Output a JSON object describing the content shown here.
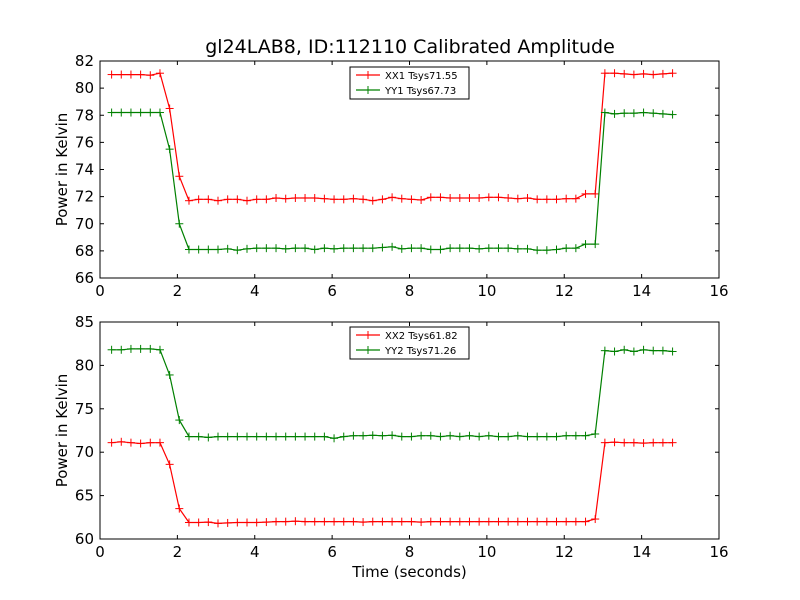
{
  "figure": {
    "title": "gl24LAB8, ID:112110 Calibrated Amplitude"
  },
  "chart_data": [
    {
      "type": "line",
      "title": "gl24LAB8, ID:112110 Calibrated Amplitude",
      "xlabel": "",
      "ylabel": "Power in Kelvin",
      "xlim": [
        0,
        16
      ],
      "ylim": [
        66,
        82
      ],
      "xticks": [
        "0",
        "2",
        "4",
        "6",
        "8",
        "10",
        "12",
        "14",
        "16"
      ],
      "yticks": [
        "66",
        "68",
        "70",
        "72",
        "74",
        "76",
        "78",
        "80",
        "82"
      ],
      "legend_position": "top-center",
      "grid": false,
      "marker": "+",
      "x": [
        0.3,
        0.55,
        0.8,
        1.05,
        1.3,
        1.55,
        1.8,
        2.05,
        2.3,
        2.55,
        2.8,
        3.05,
        3.3,
        3.55,
        3.8,
        4.05,
        4.3,
        4.55,
        4.8,
        5.05,
        5.3,
        5.55,
        5.8,
        6.05,
        6.3,
        6.55,
        6.8,
        7.05,
        7.3,
        7.55,
        7.8,
        8.05,
        8.3,
        8.55,
        8.8,
        9.05,
        9.3,
        9.55,
        9.8,
        10.05,
        10.3,
        10.55,
        10.8,
        11.05,
        11.3,
        11.55,
        11.8,
        12.05,
        12.3,
        12.55,
        12.8,
        13.05,
        13.3,
        13.55,
        13.8,
        14.05,
        14.3,
        14.55,
        14.8
      ],
      "series": [
        {
          "name": "XX1 Tsys71.55",
          "color": "#ff0000",
          "values": [
            81.0,
            81.0,
            81.0,
            81.0,
            80.95,
            81.1,
            78.5,
            73.5,
            71.7,
            71.8,
            71.8,
            71.7,
            71.8,
            71.8,
            71.7,
            71.8,
            71.8,
            71.9,
            71.85,
            71.9,
            71.9,
            71.9,
            71.85,
            71.8,
            71.8,
            71.85,
            71.8,
            71.7,
            71.8,
            71.95,
            71.85,
            71.8,
            71.75,
            71.95,
            71.95,
            71.9,
            71.9,
            71.9,
            71.9,
            71.95,
            71.95,
            71.9,
            71.85,
            71.9,
            71.8,
            71.8,
            71.8,
            71.85,
            71.85,
            72.2,
            72.2,
            81.1,
            81.1,
            81.05,
            81.0,
            81.05,
            81.0,
            81.05,
            81.1
          ]
        },
        {
          "name": "YY1 Tsys67.73",
          "color": "#008000",
          "values": [
            78.2,
            78.2,
            78.2,
            78.2,
            78.2,
            78.2,
            75.5,
            70.0,
            68.1,
            68.1,
            68.1,
            68.1,
            68.15,
            68.05,
            68.15,
            68.2,
            68.2,
            68.2,
            68.15,
            68.2,
            68.2,
            68.1,
            68.2,
            68.15,
            68.2,
            68.2,
            68.2,
            68.2,
            68.25,
            68.3,
            68.15,
            68.2,
            68.2,
            68.1,
            68.1,
            68.2,
            68.2,
            68.2,
            68.15,
            68.2,
            68.2,
            68.2,
            68.15,
            68.15,
            68.05,
            68.05,
            68.1,
            68.2,
            68.2,
            68.5,
            68.5,
            78.2,
            78.1,
            78.15,
            78.15,
            78.2,
            78.15,
            78.1,
            78.05
          ]
        }
      ]
    },
    {
      "type": "line",
      "title": "",
      "xlabel": "Time (seconds)",
      "ylabel": "Power in Kelvin",
      "xlim": [
        0,
        16
      ],
      "ylim": [
        60,
        85
      ],
      "xticks": [
        "0",
        "2",
        "4",
        "6",
        "8",
        "10",
        "12",
        "14",
        "16"
      ],
      "yticks": [
        "60",
        "65",
        "70",
        "75",
        "80",
        "85"
      ],
      "legend_position": "top-center",
      "grid": false,
      "marker": "+",
      "x": [
        0.3,
        0.55,
        0.8,
        1.05,
        1.3,
        1.55,
        1.8,
        2.05,
        2.3,
        2.55,
        2.8,
        3.05,
        3.3,
        3.55,
        3.8,
        4.05,
        4.3,
        4.55,
        4.8,
        5.05,
        5.3,
        5.55,
        5.8,
        6.05,
        6.3,
        6.55,
        6.8,
        7.05,
        7.3,
        7.55,
        7.8,
        8.05,
        8.3,
        8.55,
        8.8,
        9.05,
        9.3,
        9.55,
        9.8,
        10.05,
        10.3,
        10.55,
        10.8,
        11.05,
        11.3,
        11.55,
        11.8,
        12.05,
        12.3,
        12.55,
        12.8,
        13.05,
        13.3,
        13.55,
        13.8,
        14.05,
        14.3,
        14.55,
        14.8
      ],
      "series": [
        {
          "name": "XX2 Tsys61.82",
          "color": "#ff0000",
          "values": [
            71.1,
            71.2,
            71.1,
            71.0,
            71.1,
            71.1,
            68.6,
            63.5,
            61.9,
            61.9,
            61.95,
            61.8,
            61.85,
            61.9,
            61.9,
            61.9,
            61.95,
            62.0,
            62.0,
            62.05,
            62.0,
            62.0,
            62.0,
            62.0,
            62.0,
            62.0,
            61.95,
            62.0,
            62.0,
            62.0,
            62.0,
            62.0,
            61.95,
            62.0,
            62.0,
            62.0,
            62.0,
            62.0,
            62.0,
            62.0,
            62.0,
            62.0,
            62.0,
            62.0,
            62.0,
            62.0,
            62.0,
            62.0,
            62.0,
            62.0,
            62.3,
            71.1,
            71.15,
            71.1,
            71.1,
            71.05,
            71.1,
            71.1,
            71.1
          ]
        },
        {
          "name": "YY2 Tsys71.26",
          "color": "#008000",
          "values": [
            81.8,
            81.8,
            81.9,
            81.9,
            81.9,
            81.8,
            78.9,
            73.7,
            71.8,
            71.8,
            71.7,
            71.8,
            71.8,
            71.8,
            71.8,
            71.8,
            71.8,
            71.8,
            71.8,
            71.8,
            71.8,
            71.8,
            71.8,
            71.6,
            71.8,
            71.9,
            71.9,
            71.95,
            71.9,
            71.95,
            71.8,
            71.8,
            71.9,
            71.9,
            71.8,
            71.9,
            71.8,
            71.9,
            71.8,
            71.9,
            71.8,
            71.8,
            71.9,
            71.8,
            71.8,
            71.8,
            71.8,
            71.9,
            71.9,
            71.9,
            72.1,
            81.7,
            81.6,
            81.8,
            81.6,
            81.8,
            81.7,
            81.7,
            81.6
          ]
        }
      ]
    }
  ]
}
